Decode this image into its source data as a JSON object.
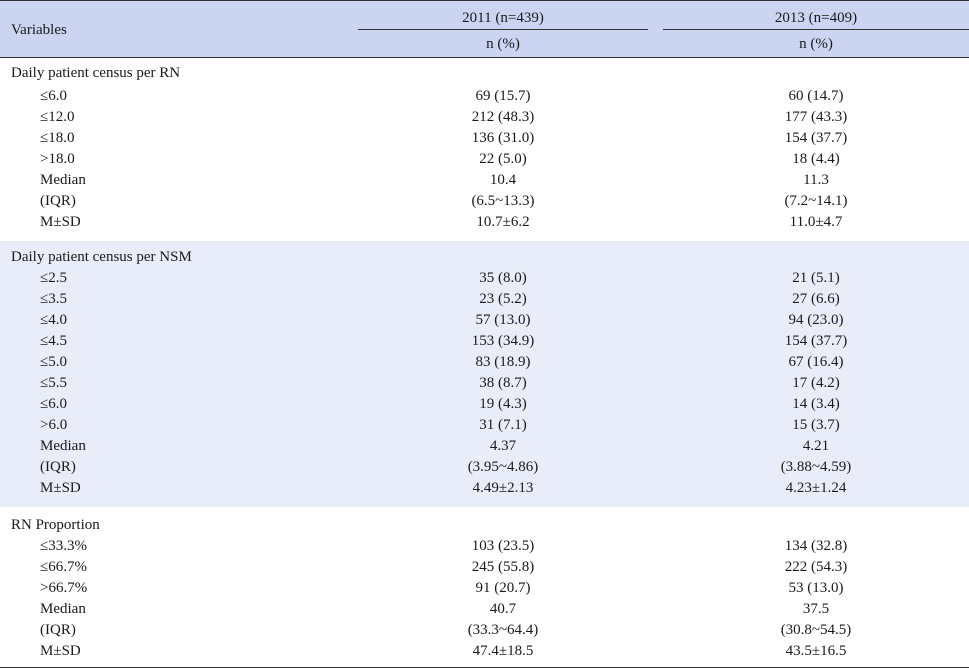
{
  "header": {
    "variables": "Variables",
    "col2011": "2011 (n=439)",
    "col2013": "2013 (n=409)",
    "n_pct_2011": "n (%)",
    "n_pct_2013": "n (%)"
  },
  "sections": [
    {
      "title": "Daily patient census per RN",
      "rows": [
        {
          "label": "≤6.0",
          "v2011": "69 (15.7)",
          "v2013": "60 (14.7)"
        },
        {
          "label": "≤12.0",
          "v2011": "212 (48.3)",
          "v2013": "177 (43.3)"
        },
        {
          "label": "≤18.0",
          "v2011": "136 (31.0)",
          "v2013": "154 (37.7)"
        },
        {
          "label": ">18.0",
          "v2011": "22 (5.0)",
          "v2013": "18 (4.4)"
        },
        {
          "label": "Median",
          "v2011": "10.4",
          "v2013": "11.3"
        },
        {
          "label": "(IQR)",
          "v2011": "(6.5~13.3)",
          "v2013": "(7.2~14.1)"
        },
        {
          "label": "M±SD",
          "v2011": "10.7±6.2",
          "v2013": "11.0±4.7"
        }
      ]
    },
    {
      "title": "Daily patient census per NSM",
      "rows": [
        {
          "label": "≤2.5",
          "v2011": "35 (8.0)",
          "v2013": "21 (5.1)"
        },
        {
          "label": "≤3.5",
          "v2011": "23 (5.2)",
          "v2013": "27 (6.6)"
        },
        {
          "label": "≤4.0",
          "v2011": "57 (13.0)",
          "v2013": "94 (23.0)"
        },
        {
          "label": "≤4.5",
          "v2011": "153 (34.9)",
          "v2013": "154 (37.7)"
        },
        {
          "label": "≤5.0",
          "v2011": "83 (18.9)",
          "v2013": "67 (16.4)"
        },
        {
          "label": "≤5.5",
          "v2011": "38 (8.7)",
          "v2013": "17 (4.2)"
        },
        {
          "label": "≤6.0",
          "v2011": "19 (4.3)",
          "v2013": "14 (3.4)"
        },
        {
          "label": ">6.0",
          "v2011": "31 (7.1)",
          "v2013": "15 (3.7)"
        },
        {
          "label": "Median",
          "v2011": "4.37",
          "v2013": "4.21"
        },
        {
          "label": "(IQR)",
          "v2011": "(3.95~4.86)",
          "v2013": "(3.88~4.59)"
        },
        {
          "label": "M±SD",
          "v2011": "4.49±2.13",
          "v2013": "4.23±1.24"
        }
      ]
    },
    {
      "title": "RN Proportion",
      "rows": [
        {
          "label": "≤33.3%",
          "v2011": "103 (23.5)",
          "v2013": "134 (32.8)"
        },
        {
          "label": "≤66.7%",
          "v2011": "245 (55.8)",
          "v2013": "222 (54.3)"
        },
        {
          "label": ">66.7%",
          "v2011": "91 (20.7)",
          "v2013": "53 (13.0)"
        },
        {
          "label": "Median",
          "v2011": "40.7",
          "v2013": "37.5"
        },
        {
          "label": "(IQR)",
          "v2011": "(33.3~64.4)",
          "v2013": "(30.8~54.5)"
        },
        {
          "label": "M±SD",
          "v2011": "47.4±18.5",
          "v2013": "43.5±16.5"
        }
      ]
    }
  ]
}
